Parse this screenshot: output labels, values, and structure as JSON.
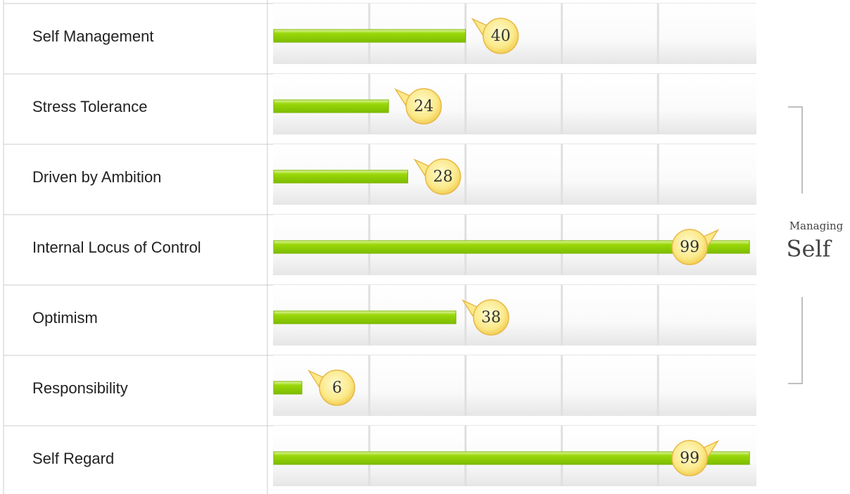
{
  "chart_data": {
    "type": "bar",
    "orientation": "horizontal",
    "categories": [
      "Self Management",
      "Stress Tolerance",
      "Driven by Ambition",
      "Internal Locus of Control",
      "Optimism",
      "Responsibility",
      "Self Regard"
    ],
    "values": [
      40,
      24,
      28,
      99,
      38,
      6,
      99
    ],
    "color": "#8fd400",
    "xlim": [
      0,
      100
    ],
    "xticks": [
      0,
      20,
      40,
      60,
      80,
      100
    ],
    "grid": true,
    "annotations": [
      "Managing",
      "Self"
    ]
  }
}
